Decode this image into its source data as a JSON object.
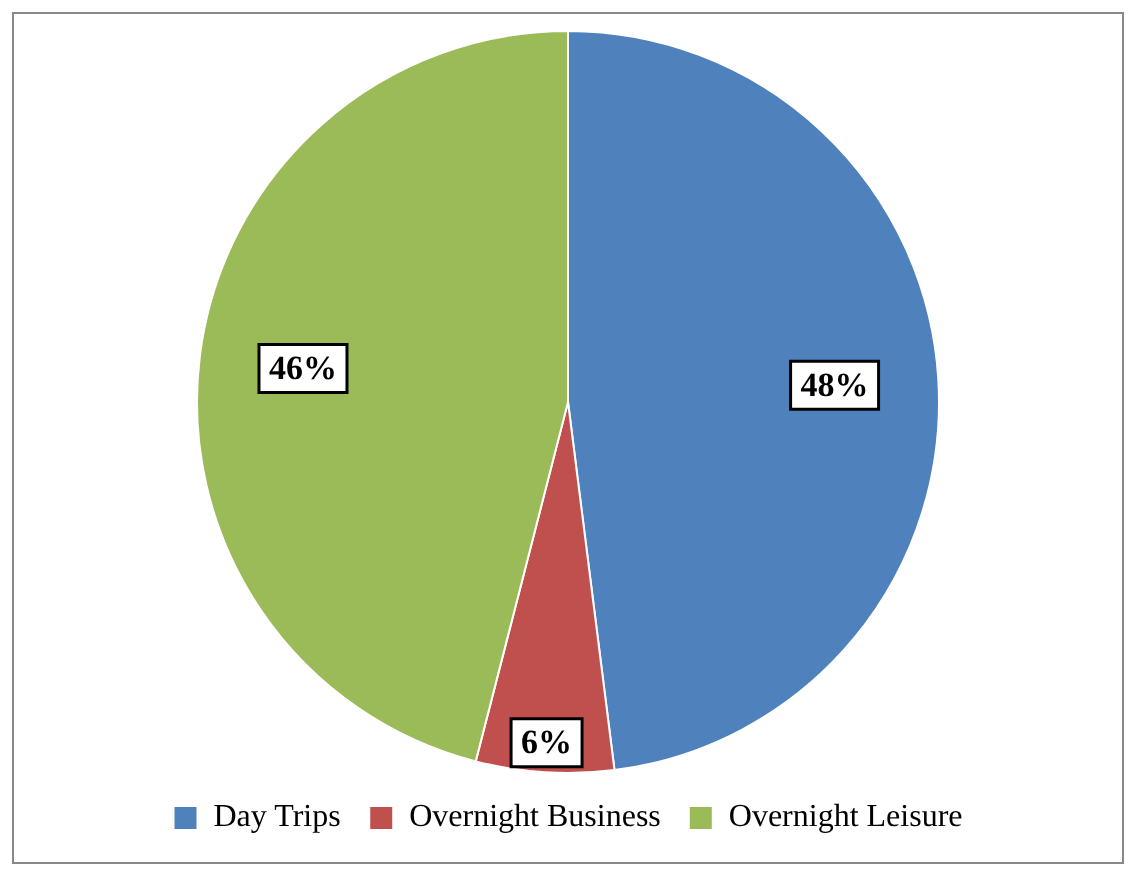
{
  "chart_data": {
    "type": "pie",
    "categories": [
      "Day Trips",
      "Overnight Business",
      "Overnight Leisure"
    ],
    "values": [
      48,
      6,
      46
    ],
    "colors": [
      "#4f81bd",
      "#c0504d",
      "#9bbb59"
    ],
    "value_labels": [
      "48%",
      "6%",
      "46%"
    ],
    "legend": "bottom"
  }
}
